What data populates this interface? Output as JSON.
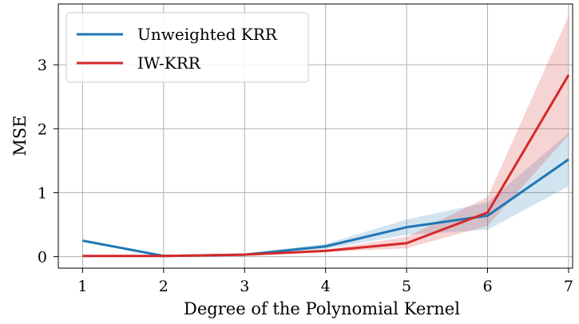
{
  "chart_data": {
    "type": "line",
    "title": "",
    "xlabel": "Degree of the Polynomial Kernel",
    "ylabel": "MSE",
    "x": [
      1,
      2,
      3,
      4,
      5,
      6,
      7
    ],
    "xlim": [
      0.7,
      7.05
    ],
    "ylim": [
      -0.18,
      3.95
    ],
    "xticks": [
      "1",
      "2",
      "3",
      "4",
      "5",
      "6",
      "7"
    ],
    "yticks": [
      "0",
      "1",
      "2",
      "3"
    ],
    "grid": true,
    "legend_position": "top-left",
    "series": [
      {
        "name": "Unweighted KRR",
        "color": "#1f77b4",
        "values": [
          0.25,
          0.01,
          0.03,
          0.16,
          0.46,
          0.64,
          1.52
        ],
        "lower": [
          0.25,
          0.01,
          0.02,
          0.12,
          0.34,
          0.42,
          1.1
        ],
        "upper": [
          0.25,
          0.01,
          0.04,
          0.2,
          0.58,
          0.85,
          1.93
        ]
      },
      {
        "name": "IW-KRR",
        "color": "#d62728",
        "values": [
          0.01,
          0.01,
          0.03,
          0.09,
          0.21,
          0.69,
          2.84
        ],
        "lower": [
          0.01,
          0.01,
          0.02,
          0.07,
          0.13,
          0.48,
          1.9
        ],
        "upper": [
          0.01,
          0.01,
          0.04,
          0.11,
          0.31,
          0.93,
          3.76
        ]
      }
    ]
  }
}
